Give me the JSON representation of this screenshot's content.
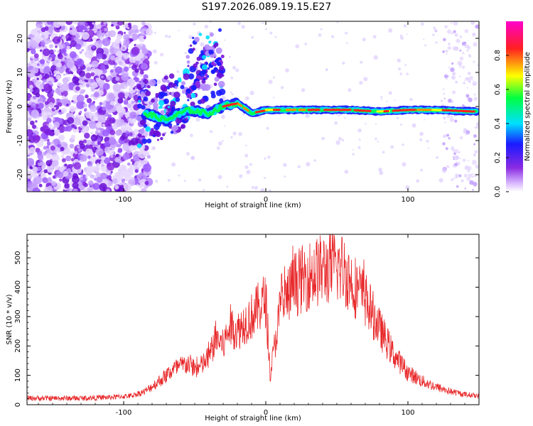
{
  "title": "S197.2026.089.19.15.E27",
  "colors": {
    "signal": "#e8282a",
    "track_core": "#ff2020",
    "track_mid": "#00e0ff",
    "track_edge": "#1a1aff",
    "noise": "#8a2be2"
  },
  "chart_data": [
    {
      "type": "heatmap",
      "title": "S197.2026.089.19.15.E27",
      "xlabel": "Height of straight line (km)",
      "ylabel": "Frequency (Hz)",
      "xlim": [
        -168,
        150
      ],
      "ylim": [
        -25,
        25
      ],
      "x_ticks": [
        -100,
        0,
        100
      ],
      "x_tick_labels": [
        "-100",
        "0",
        "100"
      ],
      "y_ticks": [
        -20,
        -10,
        0,
        10,
        20
      ],
      "y_tick_labels": [
        "-20",
        "-10",
        "0",
        "10",
        "20"
      ],
      "colorbar": {
        "label": "Normalized spectral amplitude",
        "range": [
          0,
          1
        ],
        "ticks": [
          0.0,
          0.2,
          0.4,
          0.6,
          0.8
        ],
        "tick_labels": [
          "0.0",
          "0.2",
          "0.4",
          "0.6",
          "0.8"
        ]
      },
      "track": {
        "description_points_x": [
          -85,
          -70,
          -55,
          -40,
          -30,
          -20,
          -10,
          0,
          20,
          40,
          60,
          80,
          100,
          120,
          148
        ],
        "description_points_y": [
          -2,
          -4,
          -1,
          -2,
          0,
          1,
          -2,
          -1,
          -1,
          -1,
          -1,
          -1.5,
          -1,
          -1,
          -1.5
        ]
      }
    },
    {
      "type": "line",
      "xlabel": "Height of straight line (km)",
      "ylabel": "SNR (10 * v/v)",
      "xlim": [
        -168,
        150
      ],
      "ylim": [
        0,
        580
      ],
      "x_ticks": [
        -100,
        0,
        100
      ],
      "x_tick_labels": [
        "-100",
        "0",
        "100"
      ],
      "y_ticks": [
        0,
        100,
        200,
        300,
        400,
        500
      ],
      "y_tick_labels": [
        "0",
        "100",
        "200",
        "300",
        "400",
        "500"
      ],
      "series": [
        {
          "name": "SNR",
          "x": [
            -168,
            -150,
            -130,
            -110,
            -95,
            -85,
            -75,
            -65,
            -55,
            -48,
            -40,
            -35,
            -30,
            -25,
            -20,
            -15,
            -10,
            -5,
            0,
            3,
            10,
            20,
            30,
            40,
            50,
            55,
            60,
            70,
            80,
            90,
            100,
            110,
            120,
            130,
            140,
            150
          ],
          "values": [
            22,
            22,
            22,
            25,
            30,
            45,
            80,
            120,
            140,
            120,
            160,
            230,
            200,
            270,
            250,
            280,
            300,
            330,
            360,
            100,
            320,
            410,
            440,
            460,
            470,
            460,
            420,
            360,
            260,
            170,
            110,
            80,
            60,
            45,
            35,
            30
          ]
        }
      ]
    }
  ]
}
